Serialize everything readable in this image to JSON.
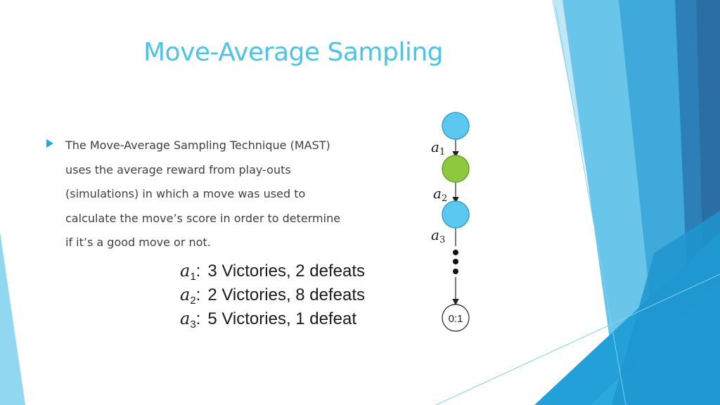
{
  "slide": {
    "title": "Move-Average Sampling",
    "bullet_lines": [
      "The Move-Average Sampling Technique (MAST)",
      "uses the average reward from play-outs",
      "(simulations) in which a move was used to",
      "calculate the move’s score in order to determine",
      "if it’s a good move or not."
    ]
  },
  "tallies": [
    {
      "var": "a",
      "sub": "1",
      "sep": ":",
      "text": "3 Victories, 2 defeats"
    },
    {
      "var": "a",
      "sub": "2",
      "sep": ":",
      "text": "2 Victories, 8 defeats"
    },
    {
      "var": "a",
      "sub": "3",
      "sep": ":",
      "text": "5 Victories, 1 defeat"
    }
  ],
  "tree": {
    "edge_labels": [
      {
        "var": "a",
        "sub": "1"
      },
      {
        "var": "a",
        "sub": "2"
      },
      {
        "var": "a",
        "sub": "3"
      }
    ],
    "leaf_label": "0:1",
    "node_colors": [
      "#5bc8ef",
      "#8dc83f",
      "#5bc8ef"
    ]
  },
  "colors": {
    "title": "#4fc3e3",
    "accent": "#2aa6d9"
  }
}
